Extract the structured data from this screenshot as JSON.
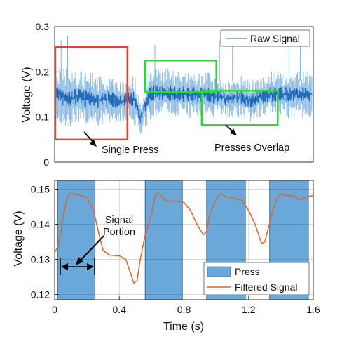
{
  "chart_data": [
    {
      "type": "line",
      "ylabel": "Voltage (V)",
      "ylim": [
        0,
        0.3
      ],
      "yticks": [
        "0",
        "0.1",
        "0.2",
        "0.3"
      ],
      "series": [
        {
          "name": "Raw Signal",
          "color": "#1f6fc0",
          "band": [
            [
              0.0,
              0.1,
              0.2
            ],
            [
              0.03,
              0.09,
              0.21
            ],
            [
              0.06,
              0.08,
              0.21
            ],
            [
              0.1,
              0.08,
              0.2
            ],
            [
              0.14,
              0.09,
              0.2
            ],
            [
              0.18,
              0.08,
              0.2
            ],
            [
              0.22,
              0.09,
              0.2
            ],
            [
              0.26,
              0.08,
              0.19
            ],
            [
              0.3,
              0.09,
              0.19
            ],
            [
              0.34,
              0.09,
              0.19
            ],
            [
              0.38,
              0.09,
              0.18
            ],
            [
              0.42,
              0.09,
              0.18
            ],
            [
              0.46,
              0.1,
              0.19
            ],
            [
              0.5,
              0.08,
              0.19
            ],
            [
              0.53,
              0.06,
              0.13
            ],
            [
              0.55,
              0.07,
              0.16
            ],
            [
              0.58,
              0.09,
              0.2
            ],
            [
              0.62,
              0.1,
              0.21
            ],
            [
              0.66,
              0.1,
              0.21
            ],
            [
              0.7,
              0.1,
              0.21
            ],
            [
              0.74,
              0.1,
              0.2
            ],
            [
              0.78,
              0.1,
              0.2
            ],
            [
              0.82,
              0.1,
              0.2
            ],
            [
              0.86,
              0.1,
              0.2
            ],
            [
              0.9,
              0.1,
              0.2
            ],
            [
              0.94,
              0.1,
              0.2
            ],
            [
              0.98,
              0.1,
              0.19
            ],
            [
              1.02,
              0.1,
              0.19
            ],
            [
              1.06,
              0.1,
              0.18
            ],
            [
              1.1,
              0.1,
              0.18
            ],
            [
              1.14,
              0.1,
              0.19
            ],
            [
              1.18,
              0.09,
              0.19
            ],
            [
              1.22,
              0.09,
              0.18
            ],
            [
              1.26,
              0.1,
              0.19
            ],
            [
              1.3,
              0.1,
              0.19
            ],
            [
              1.34,
              0.1,
              0.2
            ],
            [
              1.38,
              0.1,
              0.2
            ],
            [
              1.42,
              0.1,
              0.2
            ],
            [
              1.46,
              0.1,
              0.2
            ],
            [
              1.5,
              0.1,
              0.2
            ],
            [
              1.54,
              0.1,
              0.2
            ],
            [
              1.58,
              0.1,
              0.2
            ],
            [
              1.6,
              0.1,
              0.2
            ]
          ]
        }
      ],
      "legend_position": "top-right",
      "annotations": [
        {
          "text": "Single Press",
          "color": "#e8412a",
          "box_x": [
            0.0,
            0.45
          ],
          "box_y": [
            0.05,
            0.255
          ]
        },
        {
          "text": "Presses Overlap",
          "color": "#22e12a",
          "boxes": [
            {
              "x": [
                0.56,
                1.0
              ],
              "y": [
                0.155,
                0.225
              ]
            },
            {
              "x": [
                0.91,
                1.38
              ],
              "y": [
                0.082,
                0.158
              ]
            }
          ]
        }
      ]
    },
    {
      "type": "line",
      "xlabel": "Time (s)",
      "ylabel": "Voltage (V)",
      "xlim": [
        0,
        1.6
      ],
      "ylim": [
        0.1185,
        0.1525
      ],
      "xticks": [
        "0",
        "0.4",
        "0.8",
        "1.2",
        "1.6"
      ],
      "yticks": [
        "0.12",
        "0.13",
        "0.14",
        "0.15"
      ],
      "series": [
        {
          "name": "Filtered Signal",
          "color": "#d9652b",
          "points": [
            [
              0.0,
              0.132
            ],
            [
              0.02,
              0.1335
            ],
            [
              0.04,
              0.138
            ],
            [
              0.06,
              0.144
            ],
            [
              0.08,
              0.1478
            ],
            [
              0.1,
              0.1488
            ],
            [
              0.12,
              0.1486
            ],
            [
              0.16,
              0.1482
            ],
            [
              0.2,
              0.1478
            ],
            [
              0.24,
              0.144
            ],
            [
              0.26,
              0.14
            ],
            [
              0.28,
              0.136
            ],
            [
              0.3,
              0.1325
            ],
            [
              0.34,
              0.1312
            ],
            [
              0.4,
              0.131
            ],
            [
              0.44,
              0.13
            ],
            [
              0.47,
              0.126
            ],
            [
              0.49,
              0.1232
            ],
            [
              0.51,
              0.124
            ],
            [
              0.53,
              0.13
            ],
            [
              0.56,
              0.137
            ],
            [
              0.6,
              0.143
            ],
            [
              0.62,
              0.1478
            ],
            [
              0.64,
              0.1488
            ],
            [
              0.66,
              0.1482
            ],
            [
              0.68,
              0.147
            ],
            [
              0.7,
              0.1466
            ],
            [
              0.75,
              0.1466
            ],
            [
              0.8,
              0.1462
            ],
            [
              0.84,
              0.144
            ],
            [
              0.88,
              0.14
            ],
            [
              0.92,
              0.137
            ],
            [
              0.94,
              0.138
            ],
            [
              0.96,
              0.143
            ],
            [
              1.0,
              0.1472
            ],
            [
              1.02,
              0.1486
            ],
            [
              1.04,
              0.1484
            ],
            [
              1.06,
              0.1478
            ],
            [
              1.1,
              0.1476
            ],
            [
              1.16,
              0.1468
            ],
            [
              1.2,
              0.144
            ],
            [
              1.24,
              0.14
            ],
            [
              1.28,
              0.1345
            ],
            [
              1.3,
              0.135
            ],
            [
              1.34,
              0.142
            ],
            [
              1.37,
              0.147
            ],
            [
              1.4,
              0.1486
            ],
            [
              1.44,
              0.1482
            ],
            [
              1.48,
              0.148
            ],
            [
              1.52,
              0.147
            ],
            [
              1.56,
              0.1478
            ],
            [
              1.6,
              0.1482
            ]
          ]
        }
      ],
      "press_regions": [
        [
          0.02,
          0.25
        ],
        [
          0.56,
          0.79
        ],
        [
          0.94,
          1.18
        ],
        [
          1.33,
          1.57
        ]
      ],
      "press_color": "#6aa8da",
      "legend_entries": [
        "Press",
        "Filtered Signal"
      ],
      "legend_position": "bottom-right",
      "annotation": {
        "text_line1": "Signal",
        "text_line2": "Portion"
      }
    }
  ]
}
